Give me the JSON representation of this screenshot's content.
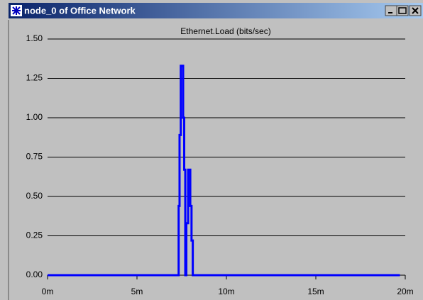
{
  "window": {
    "title": "node_0 of Office Network"
  },
  "chart_data": {
    "type": "line",
    "title": "Ethernet.Load (bits/sec)",
    "x": [
      0,
      7.33,
      7.33,
      7.38,
      7.38,
      7.45,
      7.45,
      7.58,
      7.58,
      7.64,
      7.64,
      7.7,
      7.7,
      7.76,
      7.76,
      7.86,
      7.86,
      7.98,
      7.98,
      8.05,
      8.05,
      8.12,
      8.12,
      19.7
    ],
    "series": [
      {
        "color": "#0000ff",
        "values": [
          0,
          0,
          0.44,
          0.44,
          0.89,
          0.89,
          1.33,
          1.33,
          1.0,
          1.0,
          0.67,
          0.67,
          0,
          0,
          0.33,
          0.33,
          0.67,
          0.67,
          0.44,
          0.44,
          0.22,
          0.22,
          0,
          0
        ]
      }
    ],
    "xlim": [
      0,
      20
    ],
    "xticks": [
      {
        "value": 0,
        "label": "0m"
      },
      {
        "value": 5,
        "label": "5m"
      },
      {
        "value": 10,
        "label": "10m"
      },
      {
        "value": 15,
        "label": "15m"
      },
      {
        "value": 20,
        "label": "20m"
      }
    ],
    "ylim": [
      0,
      1.5
    ],
    "yticks": [
      {
        "value": 0,
        "label": "0.00"
      },
      {
        "value": 0.25,
        "label": "0.25"
      },
      {
        "value": 0.5,
        "label": "0.50"
      },
      {
        "value": 0.75,
        "label": "0.75"
      },
      {
        "value": 1.0,
        "label": "1.00"
      },
      {
        "value": 1.25,
        "label": "1.25"
      },
      {
        "value": 1.5,
        "label": "1.50"
      }
    ],
    "grid": true
  }
}
